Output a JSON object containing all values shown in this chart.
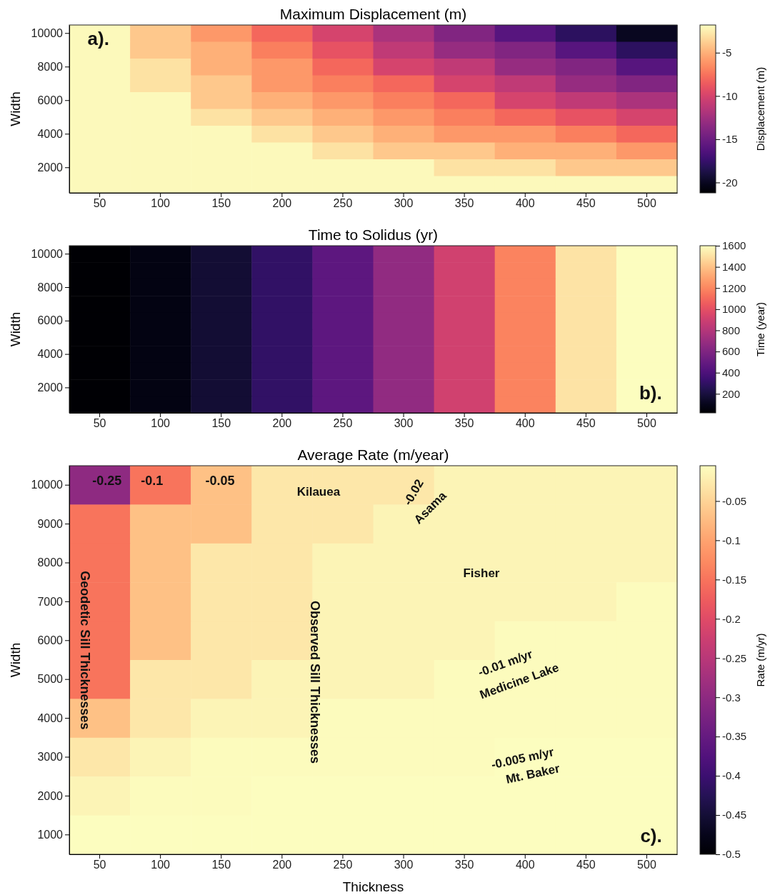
{
  "chart_data": [
    {
      "type": "heatmap",
      "title": "Maximum Displacement (m)",
      "ylabel": "Width",
      "clabel": "Displacement (m)",
      "categories": [
        "50",
        "100",
        "150",
        "200",
        "250",
        "300",
        "350",
        "400",
        "450",
        "500"
      ],
      "y_categories": [
        "10000",
        null,
        "8000",
        null,
        "6000",
        null,
        "4000",
        null,
        "2000",
        null
      ],
      "cells": [
        [
          -2,
          -4,
          -6,
          -8,
          -10,
          -12,
          -14,
          -16,
          -18,
          -20
        ],
        [
          -2,
          -4,
          -5,
          -7,
          -9,
          -11,
          -13,
          -14,
          -16,
          -18
        ],
        [
          -2,
          -3,
          -5,
          -6,
          -8,
          -10,
          -11,
          -13,
          -14,
          -16
        ],
        [
          -2,
          -3,
          -4,
          -6,
          -7,
          -8,
          -10,
          -11,
          -13,
          -14
        ],
        [
          -2,
          -2,
          -4,
          -5,
          -6,
          -7,
          -8,
          -10,
          -11,
          -12
        ],
        [
          -2,
          -2,
          -3,
          -4,
          -5,
          -6,
          -7,
          -8,
          -9,
          -10
        ],
        [
          -2,
          -2,
          -2,
          -3,
          -4,
          -5,
          -6,
          -6,
          -7,
          -8
        ],
        [
          -2,
          -2,
          -2,
          -2,
          -3,
          -4,
          -4,
          -5,
          -5,
          -6
        ],
        [
          -2,
          -2,
          -2,
          -2,
          -2,
          -2,
          -3,
          -3,
          -4,
          -4
        ],
        [
          -2,
          -2,
          -2,
          -2,
          -2,
          -2,
          -2,
          -2,
          -2,
          -2
        ]
      ],
      "clim": [
        -21.2,
        -1.8
      ],
      "cticks": [
        -20,
        -15,
        -10,
        -5
      ],
      "annotations": [
        "a)."
      ]
    },
    {
      "type": "heatmap",
      "title": "Time to Solidus (yr)",
      "ylabel": "Width",
      "clabel": "Time (year)",
      "categories": [
        "50",
        "100",
        "150",
        "200",
        "250",
        "300",
        "350",
        "400",
        "450",
        "500"
      ],
      "y_categories": [
        "10000",
        null,
        "8000",
        null,
        "6000",
        null,
        "4000",
        null,
        "2000",
        null
      ],
      "cells": [
        [
          20,
          75,
          170,
          300,
          470,
          670,
          910,
          1190,
          1510,
          1600
        ],
        [
          20,
          75,
          170,
          300,
          470,
          670,
          910,
          1190,
          1510,
          1600
        ],
        [
          20,
          75,
          170,
          300,
          470,
          670,
          910,
          1190,
          1510,
          1600
        ],
        [
          20,
          75,
          170,
          300,
          470,
          670,
          910,
          1190,
          1510,
          1600
        ],
        [
          20,
          75,
          170,
          300,
          470,
          670,
          910,
          1190,
          1510,
          1600
        ],
        [
          20,
          75,
          170,
          300,
          470,
          670,
          910,
          1190,
          1510,
          1600
        ],
        [
          20,
          75,
          170,
          300,
          470,
          670,
          910,
          1190,
          1510,
          1600
        ],
        [
          20,
          75,
          170,
          300,
          470,
          670,
          910,
          1190,
          1510,
          1600
        ],
        [
          20,
          75,
          170,
          300,
          470,
          670,
          910,
          1190,
          1510,
          1600
        ],
        [
          20,
          75,
          170,
          300,
          470,
          670,
          910,
          1190,
          1510,
          1600
        ]
      ],
      "clim": [
        20,
        1600
      ],
      "cticks": [
        200,
        400,
        600,
        800,
        1000,
        1200,
        1400,
        1600
      ],
      "annotations": [
        "b)."
      ]
    },
    {
      "type": "heatmap",
      "title": "Average Rate (m/year)",
      "xlabel": "Thickness",
      "ylabel": "Width",
      "clabel": "Rate (m/yr)",
      "categories": [
        "50",
        "100",
        "150",
        "200",
        "250",
        "300",
        "350",
        "400",
        "450",
        "500"
      ],
      "y_categories": [
        "10000",
        "9000",
        "8000",
        "7000",
        "6000",
        "5000",
        "4000",
        "3000",
        "2000",
        "1000"
      ],
      "cells": [
        [
          -0.3,
          -0.15,
          -0.07,
          -0.03,
          -0.03,
          -0.03,
          -0.015,
          -0.015,
          -0.015,
          -0.015
        ],
        [
          -0.15,
          -0.07,
          -0.07,
          -0.03,
          -0.03,
          -0.015,
          -0.015,
          -0.015,
          -0.015,
          -0.015
        ],
        [
          -0.15,
          -0.07,
          -0.03,
          -0.03,
          -0.015,
          -0.015,
          -0.015,
          -0.015,
          -0.015,
          -0.015
        ],
        [
          -0.15,
          -0.07,
          -0.03,
          -0.03,
          -0.015,
          -0.015,
          -0.015,
          -0.015,
          -0.015,
          -0.007
        ],
        [
          -0.15,
          -0.07,
          -0.03,
          -0.03,
          -0.015,
          -0.015,
          -0.015,
          -0.007,
          -0.007,
          -0.007
        ],
        [
          -0.15,
          -0.03,
          -0.03,
          -0.015,
          -0.015,
          -0.015,
          -0.007,
          -0.007,
          -0.007,
          -0.007
        ],
        [
          -0.07,
          -0.03,
          -0.015,
          -0.015,
          -0.007,
          -0.007,
          -0.007,
          -0.007,
          -0.007,
          -0.007
        ],
        [
          -0.03,
          -0.015,
          -0.007,
          -0.007,
          -0.007,
          -0.007,
          -0.007,
          -0.004,
          -0.004,
          -0.004
        ],
        [
          -0.015,
          -0.007,
          -0.007,
          -0.004,
          -0.004,
          -0.004,
          -0.004,
          -0.004,
          -0.004,
          -0.004
        ],
        [
          -0.004,
          -0.004,
          -0.004,
          -0.004,
          -0.004,
          -0.004,
          -0.004,
          -0.004,
          -0.004,
          -0.004
        ]
      ],
      "clim": [
        -0.5,
        -0.005
      ],
      "cticks": [
        -0.5,
        -0.45,
        -0.4,
        -0.35,
        -0.3,
        -0.25,
        -0.2,
        -0.15,
        -0.1,
        -0.05
      ],
      "annotations": [
        "-0.25",
        "-0.1",
        "-0.05",
        "Kilauea",
        "-0.02",
        "Asama",
        "Fisher",
        "Geodetic Sill Thicknesses",
        "Observed Sill Thicknesses",
        "-0.01 m/yr",
        "Medicine Lake",
        "-0.005 m/yr",
        "Mt. Baker",
        "c)."
      ]
    }
  ]
}
